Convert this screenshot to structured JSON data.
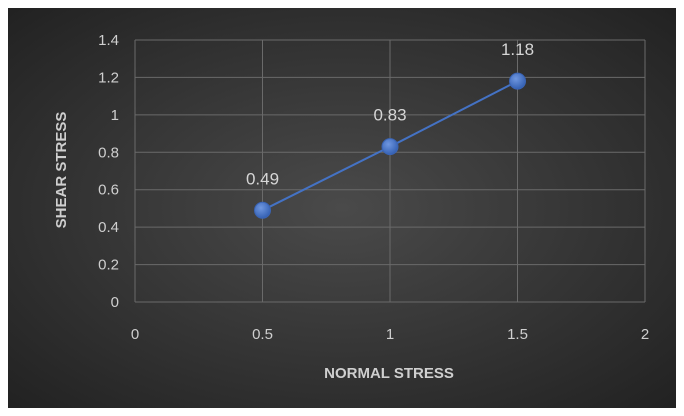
{
  "chart_data": {
    "type": "scatter",
    "title": "",
    "xlabel": "NORMAL STRESS",
    "ylabel": "SHEAR STRESS",
    "xlim": [
      0,
      2
    ],
    "ylim": [
      0,
      1.4
    ],
    "x_ticks": [
      "0",
      "0.5",
      "1",
      "1.5",
      "2"
    ],
    "y_ticks": [
      "0",
      "0.2",
      "0.4",
      "0.6",
      "0.8",
      "1",
      "1.2",
      "1.4"
    ],
    "grid": true,
    "legend": "none",
    "series": [
      {
        "x": [
          0.5,
          1,
          1.5
        ],
        "y": [
          0.49,
          0.83,
          1.18
        ],
        "labels": [
          "0.49",
          "0.83",
          "1.18"
        ],
        "color": "#4472c4",
        "marker": "circle",
        "line": true
      }
    ]
  }
}
